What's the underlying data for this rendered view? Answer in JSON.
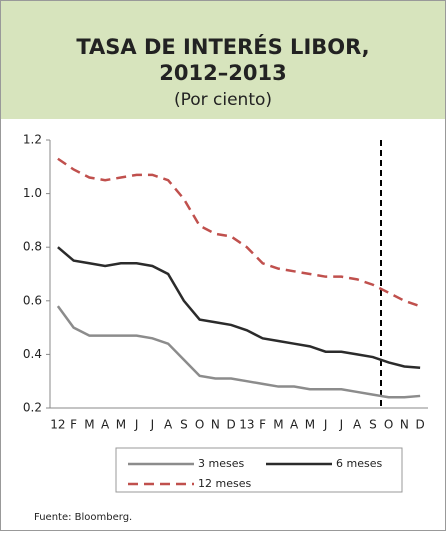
{
  "chart_data": {
    "type": "line",
    "title": "TASA DE INTERÉS LIBOR,",
    "title_line2": "2012–2013",
    "subtitle": "(Por ciento)",
    "categories": [
      "12",
      "F",
      "M",
      "A",
      "M",
      "J",
      "J",
      "A",
      "S",
      "O",
      "N",
      "D",
      "13",
      "F",
      "M",
      "A",
      "M",
      "J",
      "J",
      "A",
      "S",
      "O",
      "N",
      "D"
    ],
    "series": [
      {
        "name": "3 meses",
        "color": "#8c8c8c",
        "dashed": false,
        "values": [
          0.58,
          0.5,
          0.47,
          0.47,
          0.47,
          0.47,
          0.46,
          0.44,
          0.38,
          0.32,
          0.31,
          0.31,
          0.3,
          0.29,
          0.28,
          0.28,
          0.27,
          0.27,
          0.27,
          0.26,
          0.25,
          0.24,
          0.24,
          0.245
        ]
      },
      {
        "name": "6 meses",
        "color": "#2b2b2b",
        "dashed": false,
        "values": [
          0.8,
          0.75,
          0.74,
          0.73,
          0.74,
          0.74,
          0.73,
          0.7,
          0.6,
          0.53,
          0.52,
          0.51,
          0.49,
          0.46,
          0.45,
          0.44,
          0.43,
          0.41,
          0.41,
          0.4,
          0.39,
          0.37,
          0.355,
          0.35
        ]
      },
      {
        "name": "12 meses",
        "color": "#c0504d",
        "dashed": true,
        "values": [
          1.13,
          1.09,
          1.06,
          1.05,
          1.06,
          1.07,
          1.07,
          1.05,
          0.98,
          0.88,
          0.85,
          0.84,
          0.8,
          0.74,
          0.72,
          0.71,
          0.7,
          0.69,
          0.69,
          0.68,
          0.66,
          0.63,
          0.6,
          0.58
        ]
      }
    ],
    "ylim": [
      0.2,
      1.2
    ],
    "yticks": [
      {
        "value": 0.2,
        "label": "0.2"
      },
      {
        "value": 0.4,
        "label": "0.4"
      },
      {
        "value": 0.6,
        "label": "0.6"
      },
      {
        "value": 0.8,
        "label": "0.8"
      },
      {
        "value": 1.0,
        "label": "1.0"
      },
      {
        "value": 1.2,
        "label": "1.2"
      }
    ],
    "source": "Fuente:  Bloomberg."
  }
}
